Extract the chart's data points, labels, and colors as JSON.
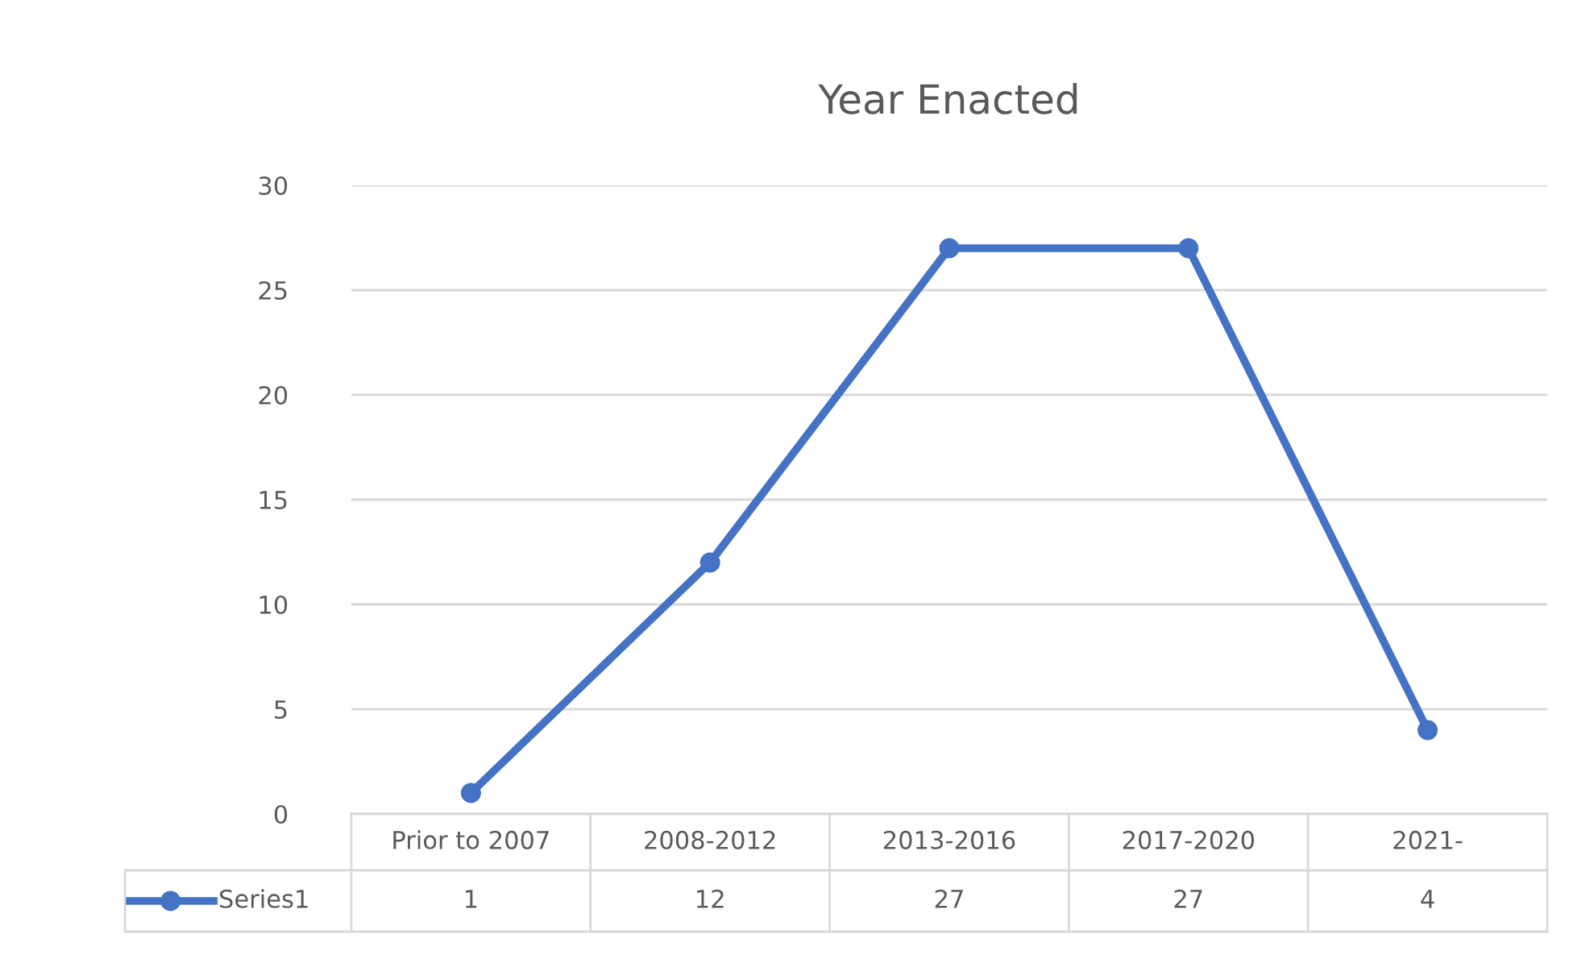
{
  "chart_data": {
    "type": "line",
    "title": "Year Enacted",
    "categories": [
      "Prior to 2007",
      "2008-2012",
      "2013-2016",
      "2017-2020",
      "2021-"
    ],
    "series": [
      {
        "name": "Series1",
        "color": "#4472c4",
        "values": [
          1,
          12,
          27,
          27,
          4
        ]
      }
    ],
    "ylim": [
      0,
      30
    ],
    "yticks": [
      0,
      5,
      10,
      15,
      20,
      25,
      30
    ],
    "grid": "y",
    "marker": "circle",
    "line_style": "solid",
    "data_labels": true
  }
}
